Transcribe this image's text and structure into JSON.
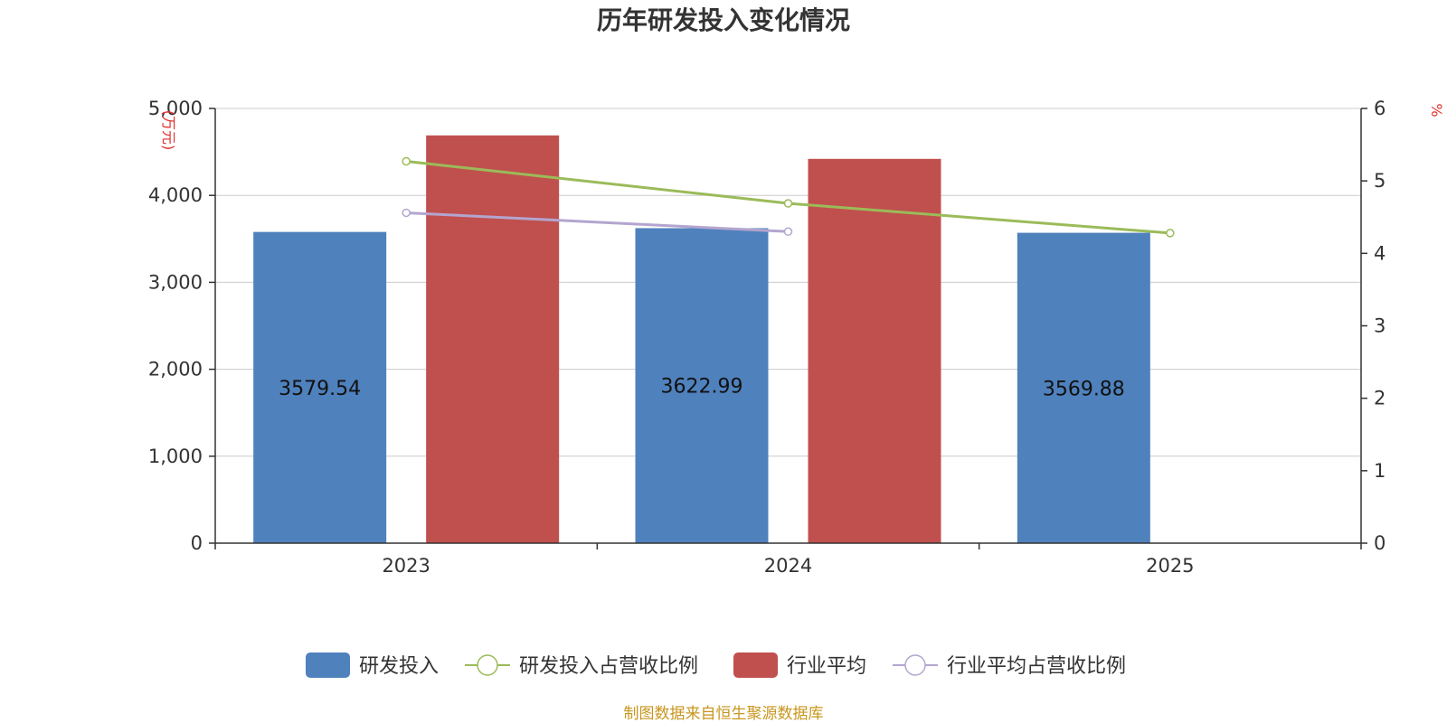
{
  "chart_data": {
    "type": "bar",
    "title": "历年研发投入变化情况",
    "categories": [
      "2023",
      "2024",
      "2025"
    ],
    "y_left": {
      "unit": "(万元)",
      "min": 0,
      "max": 5000,
      "ticks": [
        0,
        1000,
        2000,
        3000,
        4000,
        5000
      ],
      "tick_labels": [
        "0",
        "1,000",
        "2,000",
        "3,000",
        "4,000",
        "5,000"
      ]
    },
    "y_right": {
      "unit": "%",
      "min": 0,
      "max": 6,
      "ticks": [
        0,
        1,
        2,
        3,
        4,
        5,
        6
      ],
      "tick_labels": [
        "0",
        "1",
        "2",
        "3",
        "4",
        "5",
        "6"
      ]
    },
    "grid": true,
    "legend_position": "bottom",
    "series": [
      {
        "name": "研发投入",
        "type": "bar",
        "axis": "left",
        "color": "#4f81bd",
        "values": [
          3579.54,
          3622.99,
          3569.88
        ],
        "labels": [
          "3579.54",
          "3622.99",
          "3569.88"
        ]
      },
      {
        "name": "研发投入占营收比例",
        "type": "line",
        "axis": "right",
        "color": "#9bbb59",
        "values": [
          5.27,
          4.69,
          4.28
        ]
      },
      {
        "name": "行业平均",
        "type": "bar",
        "axis": "left",
        "color": "#c0504d",
        "values": [
          4690,
          4420,
          null
        ]
      },
      {
        "name": "行业平均占营收比例",
        "type": "line",
        "axis": "right",
        "color": "#b3a5cf",
        "values": [
          4.56,
          4.3,
          null
        ]
      }
    ],
    "source": "制图数据来自恒生聚源数据库"
  }
}
